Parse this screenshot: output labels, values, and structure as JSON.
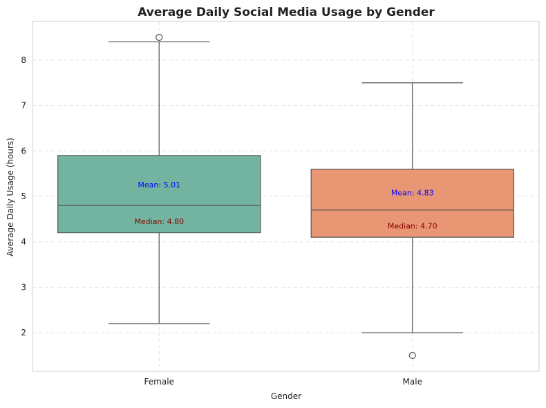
{
  "chart_data": {
    "type": "box",
    "title": "Average Daily Social Media Usage by Gender",
    "xlabel": "Gender",
    "ylabel": "Average Daily Usage (hours)",
    "ylim": [
      1.15,
      8.85
    ],
    "yticks": [
      2,
      3,
      4,
      5,
      6,
      7,
      8
    ],
    "grid": true,
    "categories": [
      "Female",
      "Male"
    ],
    "boxes": [
      {
        "category": "Female",
        "color": "#72b4a0",
        "whisker_low": 2.2,
        "q1": 4.2,
        "median": 4.8,
        "q3": 5.9,
        "whisker_high": 8.4,
        "outliers": [
          8.5
        ],
        "mean": 5.01,
        "mean_label": "Mean: 5.01",
        "median_label": "Median: 4.80"
      },
      {
        "category": "Male",
        "color": "#e89673",
        "whisker_low": 2.0,
        "q1": 4.1,
        "median": 4.7,
        "q3": 5.6,
        "whisker_high": 7.5,
        "outliers": [
          1.5
        ],
        "mean": 4.83,
        "mean_label": "Mean: 4.83",
        "median_label": "Median: 4.70"
      }
    ]
  }
}
